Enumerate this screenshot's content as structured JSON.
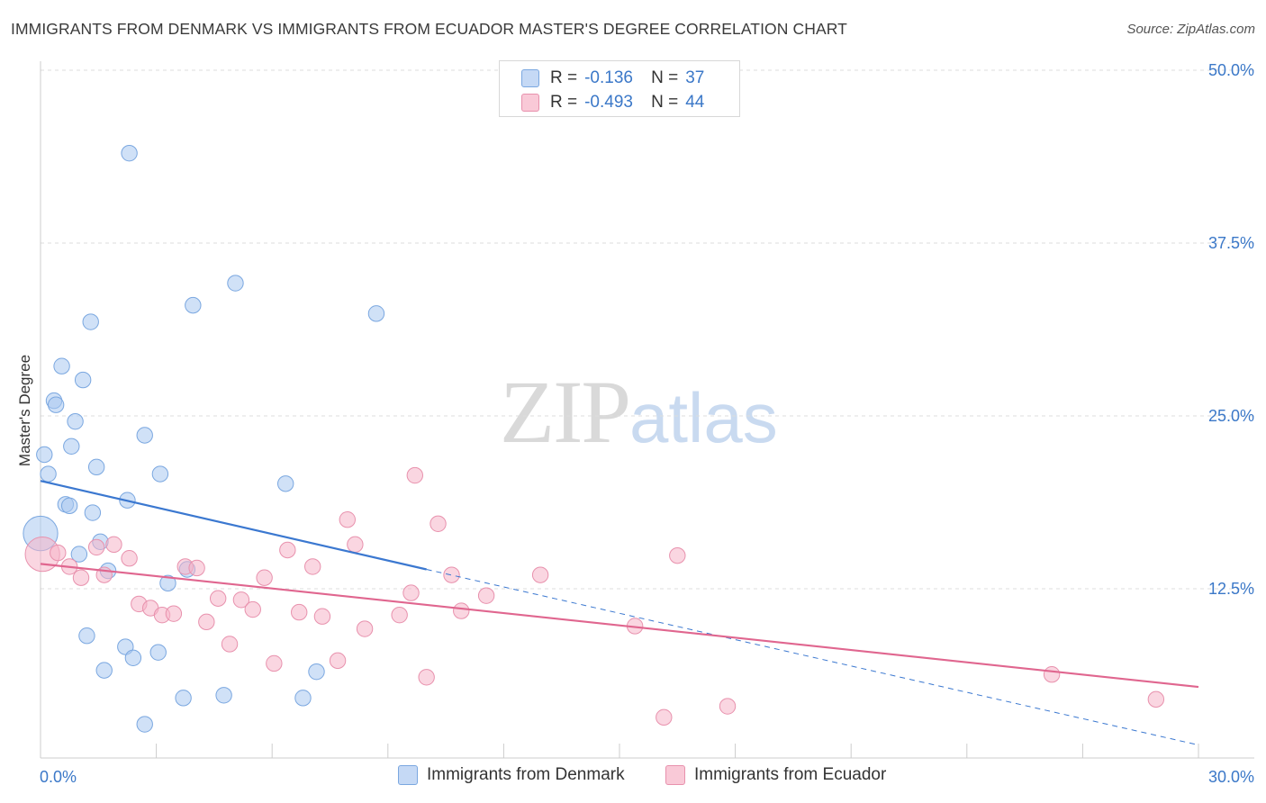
{
  "header": {
    "title": "IMMIGRANTS FROM DENMARK VS IMMIGRANTS FROM ECUADOR MASTER'S DEGREE CORRELATION CHART",
    "source": "Source: ZipAtlas.com"
  },
  "watermark": {
    "zip": "ZIP",
    "atlas": "atlas"
  },
  "legend": {
    "series": [
      {
        "name": "Immigrants from Denmark",
        "r_label": "R =",
        "r_value": "-0.136",
        "n_label": "N =",
        "n_value": "37",
        "fill": "#c5d9f5",
        "stroke": "#7aa7e0"
      },
      {
        "name": "Immigrants from Ecuador",
        "r_label": "R =",
        "r_value": "-0.493",
        "n_label": "N =",
        "n_value": "44",
        "fill": "#f9c9d7",
        "stroke": "#e891ad"
      }
    ]
  },
  "colors": {
    "denmark_line": "#3b78d0",
    "ecuador_line": "#e0668f",
    "tick_label": "#3b78c8",
    "grid": "#dddddd"
  },
  "chart_data": {
    "type": "scatter",
    "title": "IMMIGRANTS FROM DENMARK VS IMMIGRANTS FROM ECUADOR MASTER'S DEGREE CORRELATION CHART",
    "xlabel": "",
    "ylabel": "Master's Degree",
    "xlim": [
      0,
      30
    ],
    "ylim": [
      0,
      50
    ],
    "x_tick_labels": [
      "0.0%",
      "30.0%"
    ],
    "y_ticks": [
      12.5,
      25.0,
      37.5,
      50.0
    ],
    "y_tick_labels": [
      "12.5%",
      "25.0%",
      "37.5%",
      "50.0%"
    ],
    "series": [
      {
        "name": "Immigrants from Denmark",
        "points": [
          [
            0.0,
            16.5,
            22
          ],
          [
            0.1,
            22.2,
            10
          ],
          [
            0.2,
            20.8,
            10
          ],
          [
            0.35,
            26.1,
            10
          ],
          [
            0.4,
            25.8,
            10
          ],
          [
            0.55,
            28.6,
            10
          ],
          [
            0.65,
            18.6,
            10
          ],
          [
            0.75,
            18.5,
            10
          ],
          [
            0.8,
            22.8,
            10
          ],
          [
            0.9,
            24.6,
            10
          ],
          [
            1.0,
            15.0,
            10
          ],
          [
            1.1,
            27.6,
            10
          ],
          [
            1.2,
            9.1,
            10
          ],
          [
            1.3,
            31.8,
            10
          ],
          [
            1.35,
            18.0,
            10
          ],
          [
            1.45,
            21.3,
            10
          ],
          [
            1.55,
            15.9,
            10
          ],
          [
            1.65,
            6.6,
            10
          ],
          [
            1.75,
            13.8,
            10
          ],
          [
            2.2,
            8.3,
            10
          ],
          [
            2.25,
            18.9,
            10
          ],
          [
            2.4,
            7.5,
            10
          ],
          [
            2.7,
            2.7,
            10
          ],
          [
            2.7,
            23.6,
            10
          ],
          [
            2.3,
            44.0,
            10
          ],
          [
            3.05,
            7.9,
            10
          ],
          [
            3.1,
            20.8,
            10
          ],
          [
            3.3,
            12.9,
            10
          ],
          [
            3.7,
            4.6,
            10
          ],
          [
            3.8,
            13.9,
            10
          ],
          [
            3.95,
            33.0,
            10
          ],
          [
            4.75,
            4.8,
            10
          ],
          [
            5.05,
            34.6,
            10
          ],
          [
            6.35,
            20.1,
            10
          ],
          [
            6.8,
            4.6,
            10
          ],
          [
            7.15,
            6.5,
            10
          ],
          [
            8.7,
            32.4,
            10
          ]
        ]
      },
      {
        "name": "Immigrants from Ecuador",
        "points": [
          [
            0.05,
            15.0,
            22
          ],
          [
            0.45,
            15.1,
            10
          ],
          [
            0.75,
            14.1,
            10
          ],
          [
            1.05,
            13.3,
            10
          ],
          [
            1.45,
            15.5,
            10
          ],
          [
            1.65,
            13.5,
            10
          ],
          [
            1.9,
            15.7,
            10
          ],
          [
            2.3,
            14.7,
            10
          ],
          [
            2.55,
            11.4,
            10
          ],
          [
            2.85,
            11.1,
            10
          ],
          [
            3.15,
            10.6,
            10
          ],
          [
            3.45,
            10.7,
            10
          ],
          [
            3.75,
            14.1,
            10
          ],
          [
            4.05,
            14.0,
            10
          ],
          [
            4.3,
            10.1,
            10
          ],
          [
            4.6,
            11.8,
            10
          ],
          [
            4.9,
            8.5,
            10
          ],
          [
            5.2,
            11.7,
            10
          ],
          [
            5.5,
            11.0,
            10
          ],
          [
            5.8,
            13.3,
            10
          ],
          [
            6.05,
            7.1,
            10
          ],
          [
            6.4,
            15.3,
            10
          ],
          [
            6.7,
            10.8,
            10
          ],
          [
            7.05,
            14.1,
            10
          ],
          [
            7.3,
            10.5,
            10
          ],
          [
            7.7,
            7.3,
            10
          ],
          [
            7.95,
            17.5,
            10
          ],
          [
            8.15,
            15.7,
            10
          ],
          [
            8.4,
            9.6,
            10
          ],
          [
            9.3,
            10.6,
            10
          ],
          [
            9.6,
            12.2,
            10
          ],
          [
            9.7,
            20.7,
            10
          ],
          [
            10.0,
            6.1,
            10
          ],
          [
            10.3,
            17.2,
            10
          ],
          [
            10.65,
            13.5,
            10
          ],
          [
            10.9,
            10.9,
            10
          ],
          [
            11.55,
            12.0,
            10
          ],
          [
            12.95,
            13.5,
            10
          ],
          [
            15.4,
            9.8,
            10
          ],
          [
            16.15,
            3.2,
            10
          ],
          [
            16.5,
            14.9,
            10
          ],
          [
            17.8,
            4.0,
            10
          ],
          [
            26.2,
            6.3,
            10
          ],
          [
            28.9,
            4.5,
            10
          ]
        ]
      }
    ],
    "trend_lines": [
      {
        "series": "Immigrants from Denmark",
        "solid": [
          [
            0,
            20.3
          ],
          [
            10.0,
            13.9
          ]
        ],
        "dashed": [
          [
            10.0,
            13.9
          ],
          [
            30.0,
            1.2
          ]
        ]
      },
      {
        "series": "Immigrants from Ecuador",
        "solid": [
          [
            0,
            14.3
          ],
          [
            30.0,
            5.4
          ]
        ]
      }
    ]
  }
}
